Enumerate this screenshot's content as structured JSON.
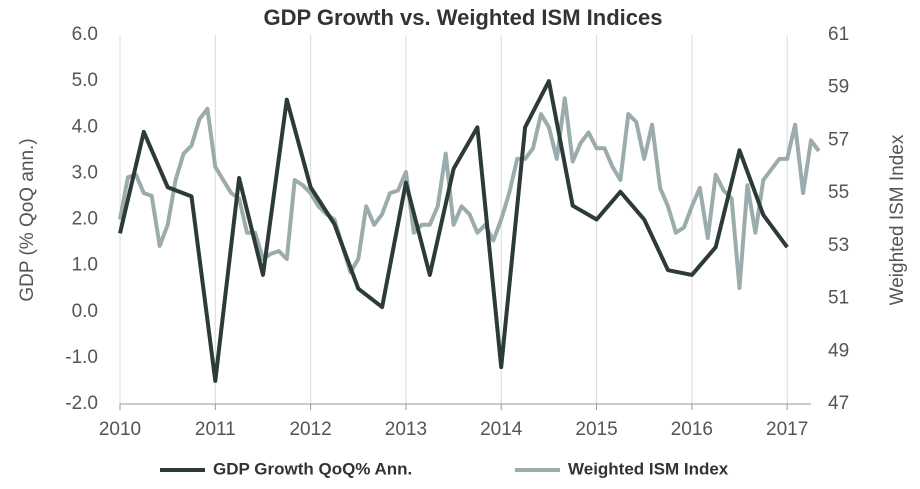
{
  "chart_data": {
    "type": "line",
    "title": "GDP Growth vs. Weighted ISM Indices",
    "y_label": "GDP (% QoQ ann.)",
    "y2_label": "Weighted ISM Index",
    "xlim": [
      2010,
      2017.25
    ],
    "xticks": [
      2010,
      2011,
      2012,
      2013,
      2014,
      2015,
      2016,
      2017
    ],
    "ylim": [
      -2,
      6
    ],
    "yticks": [
      {
        "value": -2,
        "label": "-2.0"
      },
      {
        "value": -1,
        "label": "-1.0"
      },
      {
        "value": 0,
        "label": "0.0"
      },
      {
        "value": 1,
        "label": "1.0"
      },
      {
        "value": 2,
        "label": "2.0"
      },
      {
        "value": 3,
        "label": "3.0"
      },
      {
        "value": 4,
        "label": "4.0"
      },
      {
        "value": 5,
        "label": "5.0"
      },
      {
        "value": 6,
        "label": "6.0"
      }
    ],
    "y2lim": [
      47,
      61
    ],
    "y2ticks": [
      47,
      49,
      51,
      53,
      55,
      57,
      59,
      61
    ],
    "grid": "x",
    "legend": "bottom",
    "series": [
      {
        "name": "GDP Growth QoQ% Ann.",
        "color": "#2c3a38",
        "x": [
          2010,
          2010.25,
          2010.5,
          2010.75,
          2011,
          2011.25,
          2011.5,
          2011.75,
          2012,
          2012.25,
          2012.5,
          2012.75,
          2013,
          2013.25,
          2013.5,
          2013.75,
          2014,
          2014.25,
          2014.5,
          2014.75,
          2015,
          2015.25,
          2015.5,
          2015.75,
          2016,
          2016.25,
          2016.5,
          2016.75,
          2017
        ],
        "values": [
          1.7,
          3.9,
          2.7,
          2.5,
          -1.5,
          2.9,
          0.8,
          4.6,
          2.7,
          1.9,
          0.5,
          0.1,
          2.8,
          0.8,
          3.1,
          4.0,
          -1.2,
          4.0,
          5.0,
          2.3,
          2.0,
          2.6,
          2.0,
          0.9,
          0.8,
          1.4,
          3.5,
          2.1,
          1.4
        ]
      },
      {
        "name": "Weighted ISM Index",
        "color": "#9aacab",
        "axis": "y2",
        "x": [
          2010,
          2010.083,
          2010.167,
          2010.25,
          2010.333,
          2010.417,
          2010.5,
          2010.583,
          2010.667,
          2010.75,
          2010.833,
          2010.917,
          2011,
          2011.083,
          2011.167,
          2011.25,
          2011.333,
          2011.417,
          2011.5,
          2011.583,
          2011.667,
          2011.75,
          2011.833,
          2011.917,
          2012,
          2012.083,
          2012.167,
          2012.25,
          2012.333,
          2012.417,
          2012.5,
          2012.583,
          2012.667,
          2012.75,
          2012.833,
          2012.917,
          2013,
          2013.083,
          2013.167,
          2013.25,
          2013.333,
          2013.417,
          2013.5,
          2013.583,
          2013.667,
          2013.75,
          2013.833,
          2013.917,
          2014,
          2014.083,
          2014.167,
          2014.25,
          2014.333,
          2014.417,
          2014.5,
          2014.583,
          2014.667,
          2014.75,
          2014.833,
          2014.917,
          2015,
          2015.083,
          2015.167,
          2015.25,
          2015.333,
          2015.417,
          2015.5,
          2015.583,
          2015.667,
          2015.75,
          2015.833,
          2015.917,
          2016,
          2016.083,
          2016.167,
          2016.25,
          2016.333,
          2016.417,
          2016.5,
          2016.583,
          2016.667,
          2016.75,
          2016.833,
          2016.917,
          2017,
          2017.083,
          2017.167,
          2017.25,
          2017.333
        ],
        "values": [
          54,
          55.6,
          55.7,
          55,
          54.9,
          53.0,
          53.8,
          55.5,
          56.5,
          56.8,
          57.8,
          58.2,
          56,
          55.5,
          55,
          54.8,
          53.5,
          53.5,
          52.5,
          52.7,
          52.8,
          52.5,
          55.5,
          55.3,
          55,
          54.5,
          54.2,
          54.0,
          53,
          52,
          52.5,
          54.5,
          53.8,
          54.2,
          55,
          55.1,
          55.8,
          53.5,
          53.8,
          53.8,
          54.5,
          56.5,
          53.8,
          54.5,
          54.2,
          53.5,
          53.8,
          53.2,
          54,
          55,
          56.3,
          56.3,
          56.7,
          58,
          57.5,
          56.3,
          58.6,
          56.2,
          56.9,
          57.3,
          56.7,
          56.7,
          56,
          55.5,
          58,
          57.7,
          56.3,
          57.6,
          55.2,
          54.5,
          53.5,
          53.7,
          54.5,
          55.2,
          53.3,
          55.7,
          55.1,
          54.8,
          51.4,
          55.3,
          53.5,
          55.5,
          55.9,
          56.3,
          56.3,
          57.6,
          55.0,
          57.0,
          56.6
        ]
      }
    ]
  }
}
